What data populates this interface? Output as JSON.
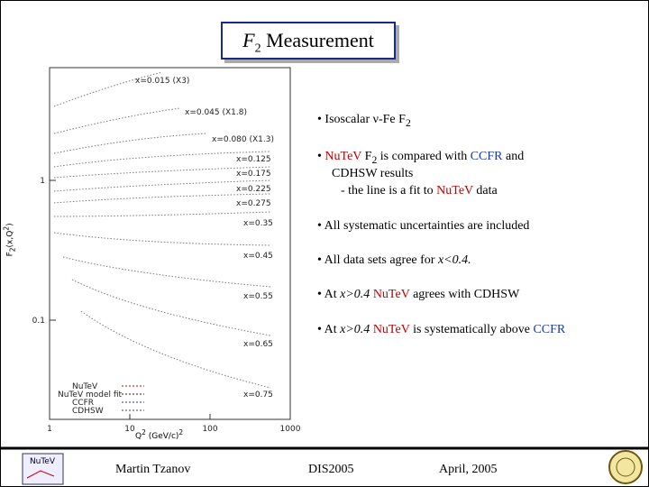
{
  "title": {
    "text": "F",
    "sub": "2",
    "rest": " Measurement"
  },
  "figure": {
    "xticks": [
      1,
      10,
      100,
      1000
    ],
    "yticks": [
      1,
      0.1
    ],
    "x_label": [
      "Q",
      "2",
      " (GeV/c)",
      "2"
    ],
    "y_label": [
      "F",
      "2",
      "(x,Q",
      "2",
      ")"
    ],
    "curve_labels": [
      "x=0.015 (X3)",
      "x=0.045 (X1.8)",
      "x=0.080 (X1.3)",
      "x=0.125",
      "x=0.175",
      "x=0.225",
      "x=0.275",
      "x=0.35",
      "x=0.45",
      "x=0.55",
      "x=0.65",
      "x=0.75"
    ],
    "legend": [
      "NuTeV",
      "NuTeV model fit",
      "CCFR",
      "CDHSW"
    ]
  },
  "bullets": [
    [
      "• Isoscalar ν-Fe F",
      "2"
    ],
    [
      "• ",
      "NuTeV",
      " F",
      "2",
      " is compared with ",
      "CCFR",
      " and",
      "CDHSW results",
      "- the line is a fit to ",
      "NuTeV",
      " data"
    ],
    [
      "• All systematic uncertainties are included"
    ],
    [
      "• All data sets agree for ",
      "x<0.4."
    ],
    [
      "• At ",
      "x>0.4",
      " ",
      "NuTeV",
      " agrees with CDHSW"
    ],
    [
      "• At ",
      "x>0.4",
      " ",
      "NuTeV",
      " is systematically above ",
      "CCFR"
    ]
  ],
  "footer": {
    "logo": "NuTeV",
    "author": "Martin Tzanov",
    "event": "DIS2005",
    "date": "April, 2005"
  }
}
